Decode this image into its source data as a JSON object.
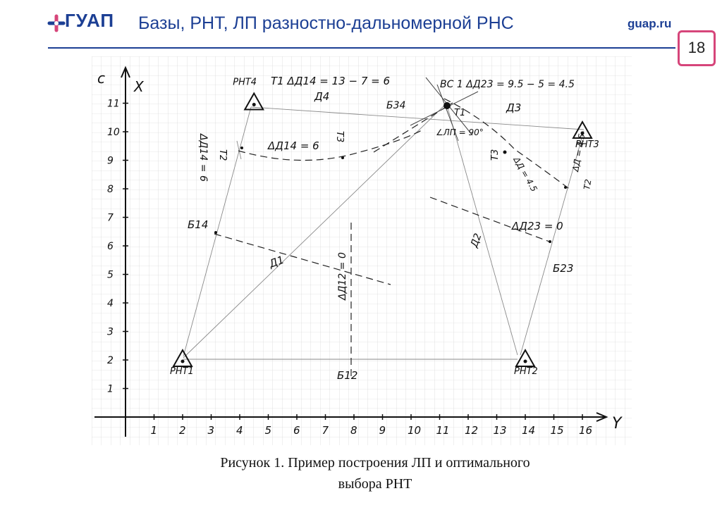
{
  "header": {
    "logo_text": "ГУАП",
    "title": "Базы, РНТ, ЛП разностно-дальномерной РНС",
    "site": "guap.ru",
    "page_number": "18",
    "brand_color": "#1c3f94",
    "accent_color": "#d6457a"
  },
  "figure": {
    "axis_x_label": "X",
    "axis_y_label": "Y",
    "axis_c_label": "c",
    "x_ticks": [
      "1",
      "2",
      "3",
      "4",
      "5",
      "6",
      "7",
      "8",
      "9",
      "10",
      "11",
      "12",
      "13",
      "14",
      "15",
      "16"
    ],
    "y_ticks": [
      "1",
      "2",
      "3",
      "4",
      "5",
      "6",
      "7",
      "8",
      "9",
      "10",
      "11"
    ],
    "stations": [
      {
        "label": "РНТ1",
        "x": 2,
        "y": 2
      },
      {
        "label": "РНТ2",
        "x": 14,
        "y": 2
      },
      {
        "label": "РНТ3",
        "x": 16,
        "y": 10
      },
      {
        "label": "РНТ4",
        "x": 4.5,
        "y": 11
      }
    ],
    "annotations": {
      "t1_formula": "Т1  ΔД14 = 13 − 7 = 6",
      "d4": "Д4",
      "b34": "Б34",
      "bc_formula": "ВС  1 ΔД23 = 9.5 − 5 = 4.5",
      "d3": "Д3",
      "t1": "Т1",
      "angle": "∠ЛП = 90°",
      "t2_left": "Т2",
      "dd14_left": "ΔД14 = 6",
      "dd14_mid": "ΔД14 = 6",
      "t3_mid": "Т3",
      "t3_right": "Т3",
      "dd45": "ΔД = 4.5",
      "dd45_right": "ΔД = 4.5",
      "t2_right": "Т2",
      "b14": "Б14",
      "d1": "Д1",
      "dd12": "ΔД12 = 0",
      "d2": "Д2",
      "dd23": "ΔД23 = 0",
      "b23": "Б23",
      "b12": "Б12"
    }
  },
  "caption": {
    "line1": "Рисунок 1.  Пример построения ЛП  и оптимального",
    "line2": "выбора РНТ"
  }
}
